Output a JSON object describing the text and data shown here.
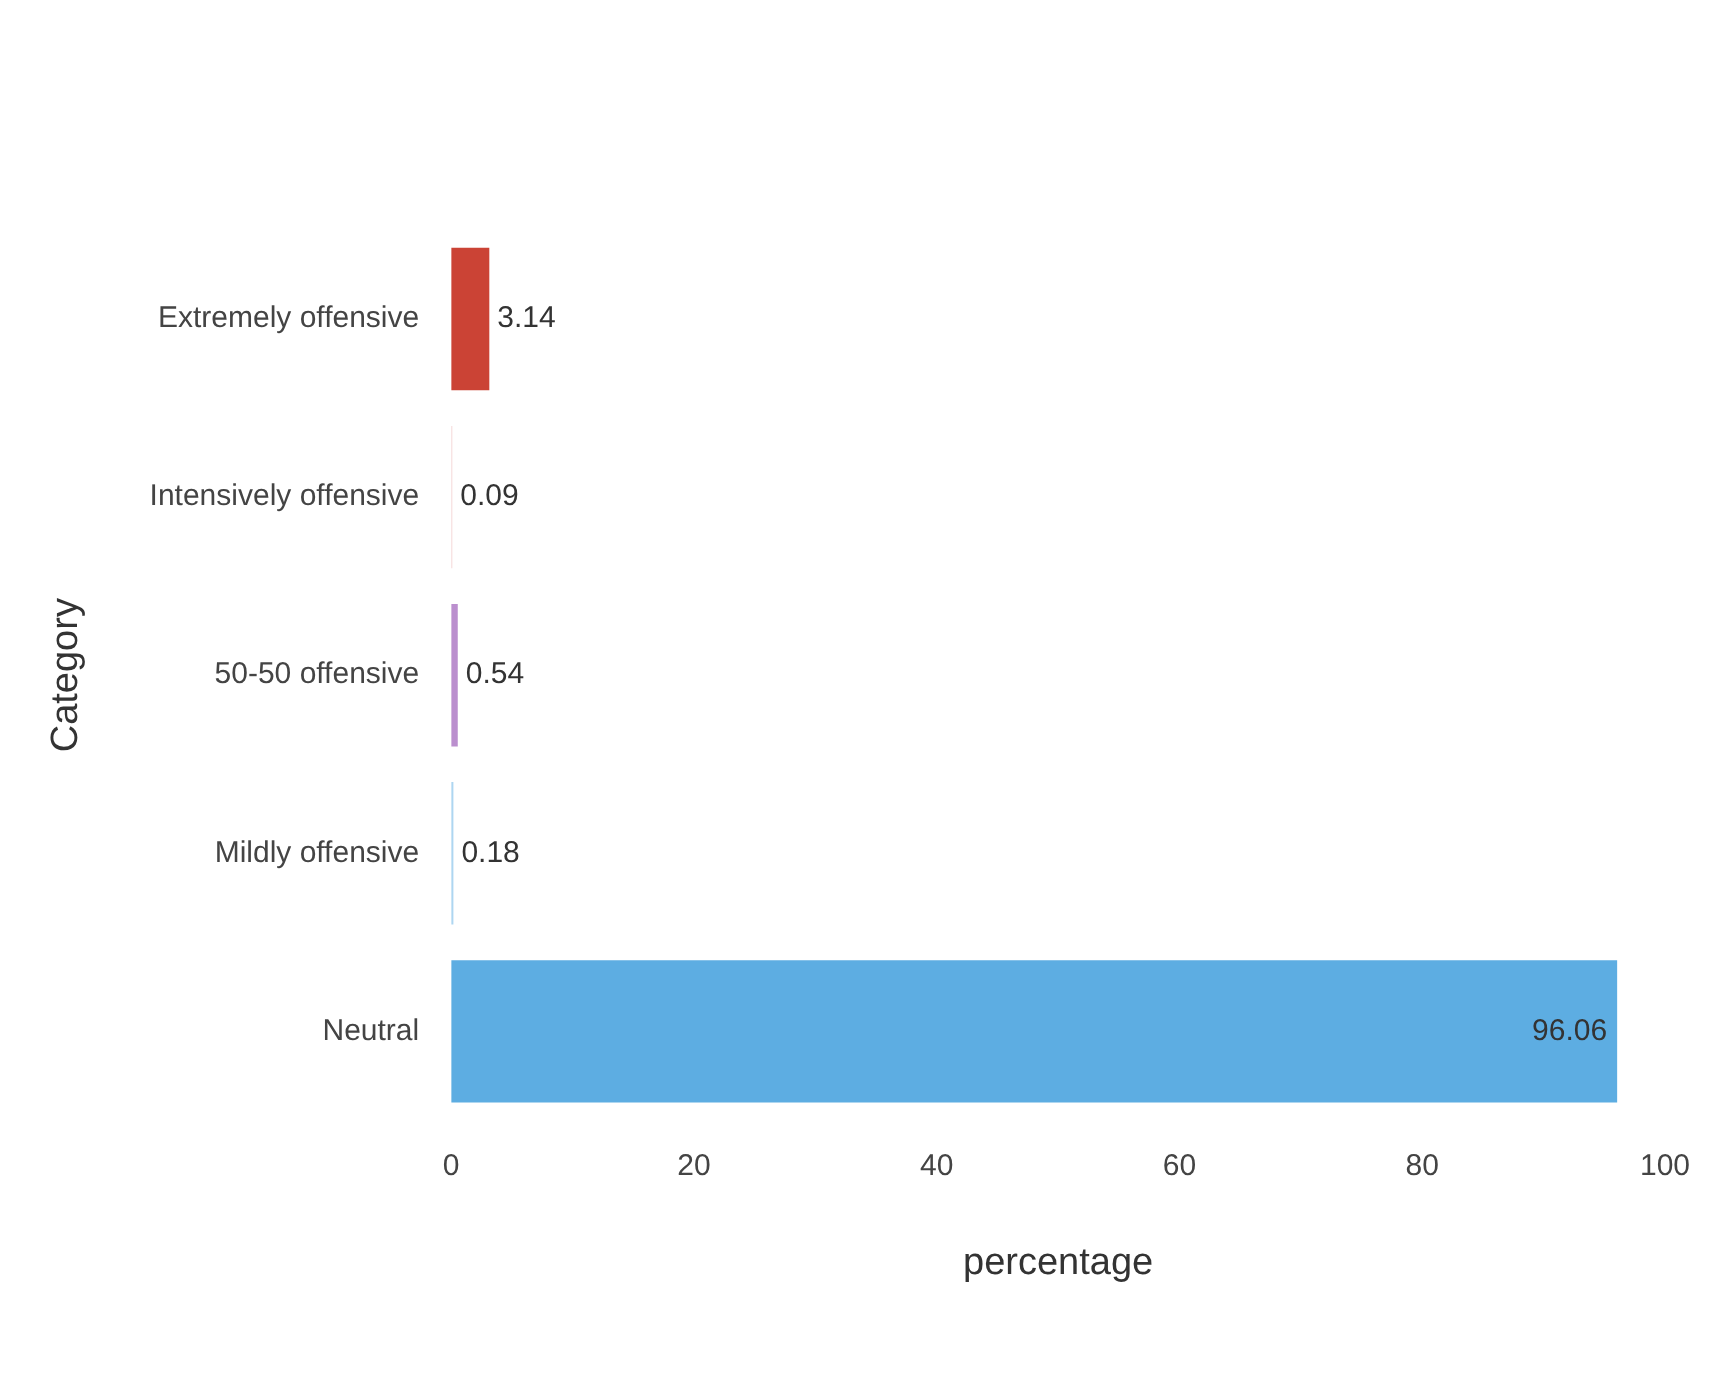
{
  "chart_data": {
    "type": "bar",
    "orientation": "horizontal",
    "xlabel": "percentage",
    "ylabel": "Category",
    "categories": [
      "Extremely offensive",
      "Intensively offensive",
      "50-50 offensive",
      "Mildly offensive",
      "Neutral"
    ],
    "values": [
      3.14,
      0.09,
      0.54,
      0.18,
      96.06
    ],
    "colors": [
      "#cb4335",
      "#f5d5d5",
      "#bb8fce",
      "#aed6f1",
      "#5dade2"
    ],
    "xlim": [
      0,
      100
    ],
    "xticks": [
      0,
      20,
      40,
      60,
      80,
      100
    ],
    "grid": false,
    "legend": false,
    "data_labels": true
  }
}
